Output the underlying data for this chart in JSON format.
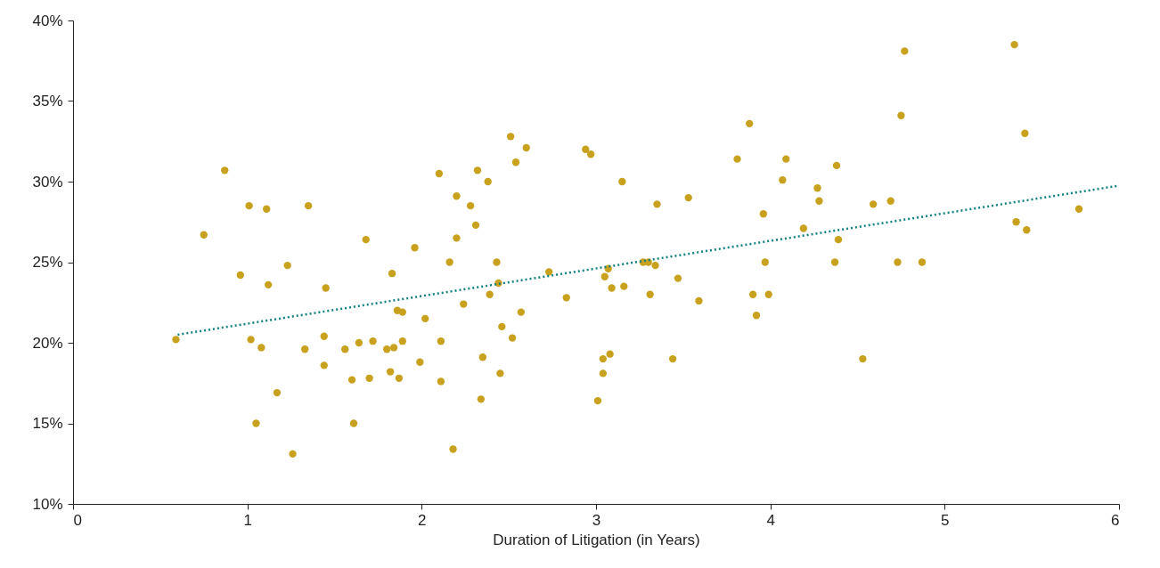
{
  "chart_data": {
    "type": "scatter",
    "xlabel": "Duration of Litigation (in Years)",
    "xlim": [
      0,
      6
    ],
    "xticks": [
      0,
      1,
      2,
      3,
      4,
      5,
      6
    ],
    "ylim": [
      10,
      40
    ],
    "yticks": [
      {
        "value": 10,
        "label": "10%"
      },
      {
        "value": 15,
        "label": "15%"
      },
      {
        "value": 20,
        "label": "20%"
      },
      {
        "value": 25,
        "label": "25%"
      },
      {
        "value": 30,
        "label": "30%"
      },
      {
        "value": 35,
        "label": "35%"
      },
      {
        "value": 40,
        "label": "40%"
      }
    ],
    "grid": false,
    "series": [
      {
        "color": "#c8a21e",
        "marker": "circle",
        "x": [
          0.59,
          0.75,
          0.87,
          0.96,
          1.01,
          1.02,
          1.05,
          1.08,
          1.11,
          1.12,
          1.17,
          1.23,
          1.26,
          1.33,
          1.35,
          1.44,
          1.44,
          1.45,
          1.56,
          1.6,
          1.61,
          1.64,
          1.68,
          1.7,
          1.72,
          1.8,
          1.82,
          1.83,
          1.84,
          1.86,
          1.87,
          1.89,
          1.89,
          1.96,
          1.99,
          2.02,
          2.1,
          2.11,
          2.11,
          2.16,
          2.18,
          2.2,
          2.2,
          2.24,
          2.28,
          2.31,
          2.32,
          2.34,
          2.35,
          2.38,
          2.39,
          2.43,
          2.44,
          2.45,
          2.46,
          2.51,
          2.52,
          2.54,
          2.57,
          2.6,
          2.73,
          2.83,
          2.94,
          2.97,
          3.01,
          3.04,
          3.04,
          3.05,
          3.07,
          3.08,
          3.09,
          3.15,
          3.16,
          3.27,
          3.3,
          3.31,
          3.34,
          3.35,
          3.44,
          3.47,
          3.53,
          3.59,
          3.81,
          3.88,
          3.9,
          3.92,
          3.96,
          3.97,
          3.99,
          4.07,
          4.09,
          4.19,
          4.27,
          4.28,
          4.37,
          4.38,
          4.39,
          4.53,
          4.59,
          4.69,
          4.73,
          4.75,
          4.77,
          4.87,
          5.4,
          5.41,
          5.46,
          5.47,
          5.77
        ],
        "values": [
          20.2,
          26.7,
          30.7,
          24.2,
          28.5,
          20.2,
          15.0,
          19.7,
          28.3,
          23.6,
          16.9,
          24.8,
          13.1,
          19.6,
          28.5,
          20.4,
          18.6,
          23.4,
          19.6,
          17.7,
          15.0,
          20.0,
          26.4,
          17.8,
          20.1,
          19.6,
          18.2,
          24.3,
          19.7,
          22.0,
          17.8,
          21.9,
          20.1,
          25.9,
          18.8,
          21.5,
          30.5,
          20.1,
          17.6,
          25.0,
          13.4,
          29.1,
          26.5,
          22.4,
          28.5,
          27.3,
          30.7,
          16.5,
          19.1,
          30.0,
          23.0,
          25.0,
          23.7,
          18.1,
          21.0,
          32.8,
          20.3,
          31.2,
          21.9,
          32.1,
          24.4,
          22.8,
          32.0,
          31.7,
          16.4,
          18.1,
          19.0,
          24.1,
          24.6,
          19.3,
          23.4,
          30.0,
          23.5,
          25.0,
          25.0,
          23.0,
          24.8,
          28.6,
          19.0,
          24.0,
          29.0,
          22.6,
          31.4,
          33.6,
          23.0,
          21.7,
          28.0,
          25.0,
          23.0,
          30.1,
          31.4,
          27.1,
          29.6,
          28.8,
          25.0,
          31.0,
          26.4,
          19.0,
          28.6,
          28.8,
          25.0,
          34.1,
          38.1,
          25.0,
          38.5,
          27.5,
          33.0,
          27.0,
          28.3
        ]
      },
      {
        "type": "line",
        "color": "#13807f",
        "line_style": "dotted",
        "x": [
          0.6,
          6
        ],
        "values": [
          20.5,
          29.75
        ]
      }
    ]
  }
}
